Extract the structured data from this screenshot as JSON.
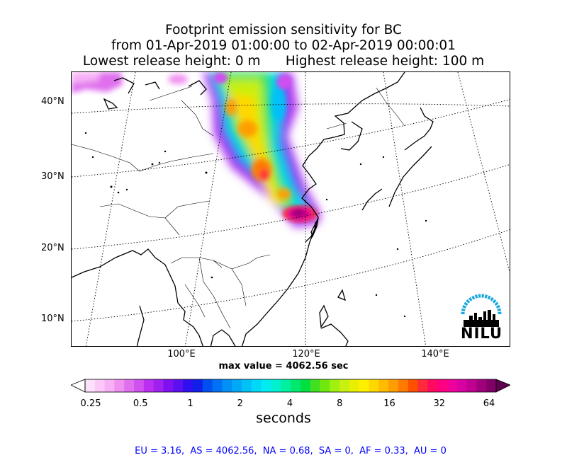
{
  "title": {
    "line1": "Footprint emission sensitivity for BC",
    "line2": "from 01-Apr-2019 01:00:00 to 02-Apr-2019 00:00:01",
    "line3": "Lowest release height: 0 m      Highest release height: 100 m"
  },
  "map": {
    "lat_labels": [
      "40°N",
      "30°N",
      "20°N",
      "10°N"
    ],
    "lon_labels": [
      "100°E",
      "120°E",
      "140°E"
    ],
    "release_location": {
      "lat": 24.5,
      "lon": 119.5
    }
  },
  "max_value": "max value = 4062.56 sec",
  "colorbar": {
    "label": "seconds",
    "tick_labels": [
      "0.25",
      "0.5",
      "1",
      "2",
      "4",
      "8",
      "16",
      "32",
      "64"
    ],
    "colors": [
      "#fde0fb",
      "#fbc8f8",
      "#f6b0f4",
      "#f090f0",
      "#e070ee",
      "#d050f0",
      "#bb30f0",
      "#a020f0",
      "#8010f0",
      "#5a10f0",
      "#3010f0",
      "#1020e8",
      "#0050f0",
      "#0070f4",
      "#0090f6",
      "#00a8f8",
      "#00c0f8",
      "#00d8f8",
      "#00ecf0",
      "#00f0d0",
      "#00f0a0",
      "#00e870",
      "#00e040",
      "#40e020",
      "#70e810",
      "#a0f010",
      "#c8f010",
      "#e8f000",
      "#fff000",
      "#ffd800",
      "#ffbb00",
      "#ff9d00",
      "#ff7a00",
      "#ff5000",
      "#ff2a3a",
      "#ff0a60",
      "#ff0080",
      "#f0009a",
      "#d800a0",
      "#c00090",
      "#a0007c",
      "#800068"
    ],
    "under_color": "#ffffff",
    "over_color": "#600050"
  },
  "region_totals": "EU = 3.16,  AS = 4062.56,  NA = 0.68,  SA = 0,  AF = 0.33,  AU = 0",
  "logo": {
    "text": "NILU",
    "arc_color": "#1aa7e0"
  }
}
